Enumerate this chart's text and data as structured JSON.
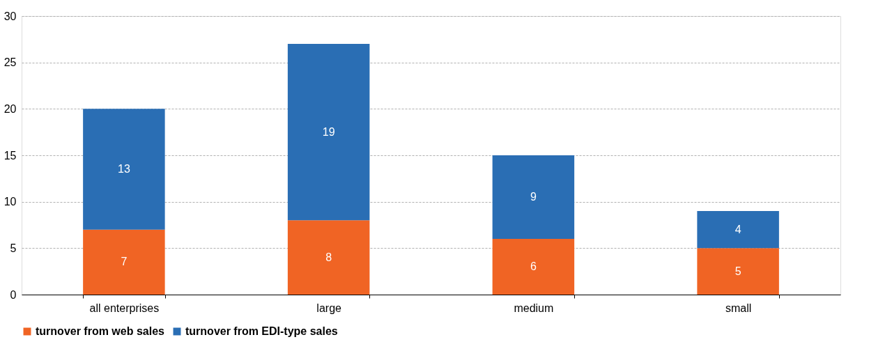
{
  "chart_data": {
    "type": "bar",
    "stacked": true,
    "categories": [
      "all enterprises",
      "large",
      "medium",
      "small"
    ],
    "series": [
      {
        "name": "turnover from web sales",
        "color": "#f06424",
        "values": [
          7,
          8,
          6,
          5
        ]
      },
      {
        "name": "turnover from EDI-type sales",
        "color": "#2a6eb4",
        "values": [
          13,
          19,
          9,
          4
        ]
      }
    ],
    "ylim": [
      0,
      30
    ],
    "yticks": [
      0,
      5,
      10,
      15,
      20,
      25,
      30
    ],
    "grid": "y",
    "legend": "bottom",
    "data_labels": true
  }
}
